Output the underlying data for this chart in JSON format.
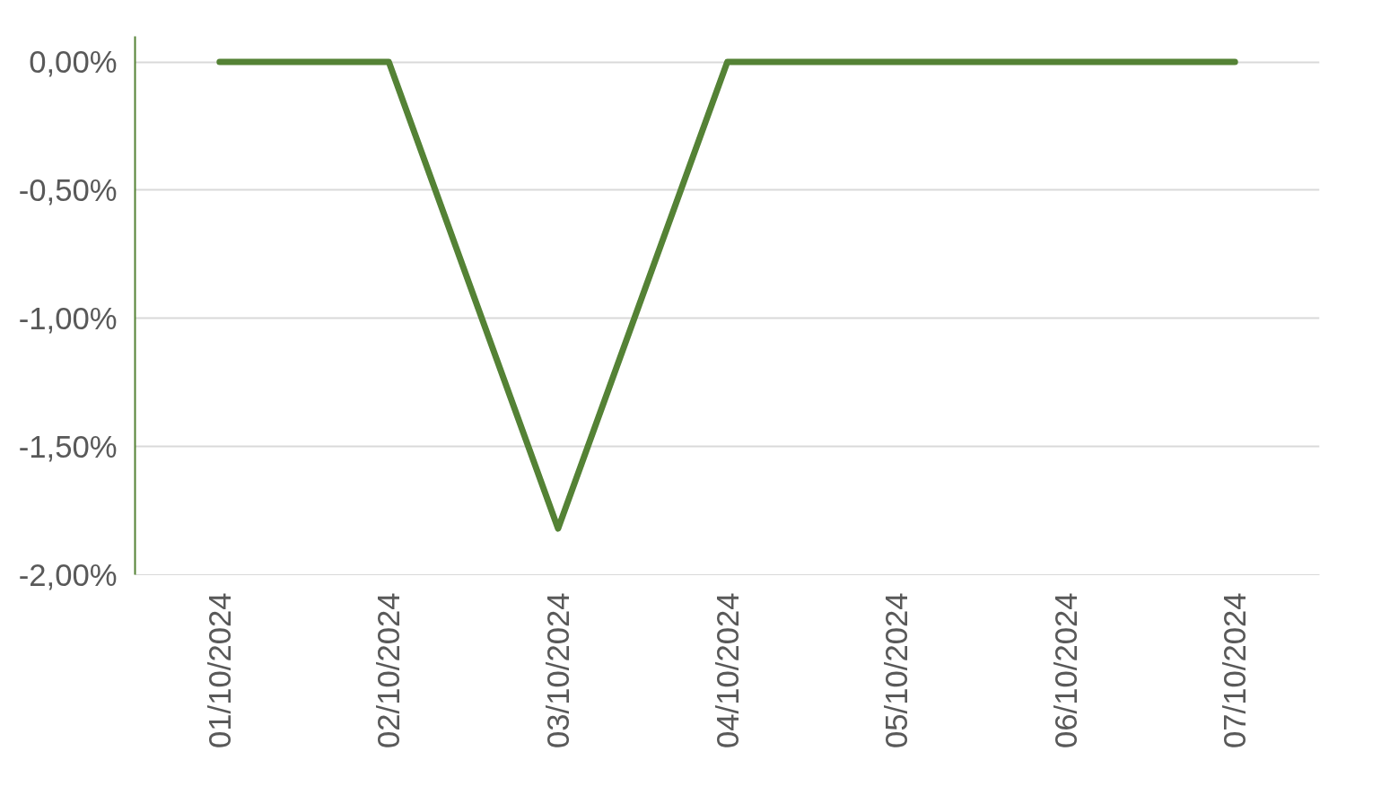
{
  "chart_data": {
    "type": "line",
    "categories": [
      "01/10/2024",
      "02/10/2024",
      "03/10/2024",
      "04/10/2024",
      "05/10/2024",
      "06/10/2024",
      "07/10/2024"
    ],
    "series": [
      {
        "color": "#548235",
        "values": [
          0,
          0,
          -1.82,
          0,
          0,
          0,
          0
        ]
      }
    ],
    "ylim": [
      -2,
      0.1
    ],
    "yticks": [
      {
        "value": 0,
        "label": "0,00%"
      },
      {
        "value": -0.5,
        "label": "-0,50%"
      },
      {
        "value": -1,
        "label": "-1,00%"
      },
      {
        "value": -1.5,
        "label": "-1,50%"
      },
      {
        "value": -2,
        "label": "-2,00%"
      }
    ],
    "grid": "y",
    "marker": "none",
    "line_style": "solid"
  }
}
